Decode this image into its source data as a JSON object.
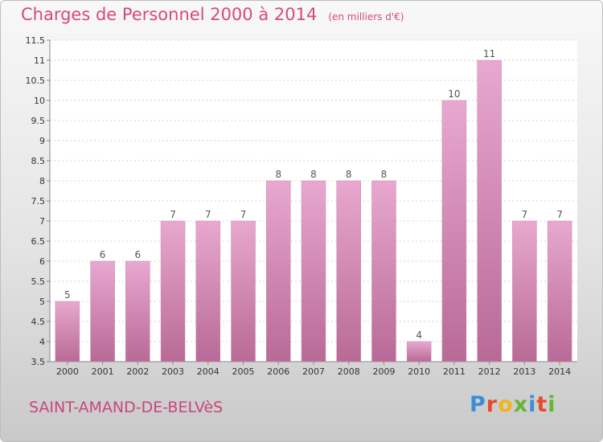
{
  "header": {
    "title": "Charges de Personnel 2000 à 2014",
    "unit": "(en milliers d'€)"
  },
  "footer": {
    "commune": "SAINT-AMAND-DE-BELVèS",
    "logo_letters": [
      "P",
      "r",
      "o",
      "x",
      "i",
      "t",
      "i"
    ],
    "logo_colors": [
      "#3a8fd8",
      "#e64a2e",
      "#f2b519",
      "#67b532",
      "#3a8fd8",
      "#e64a2e",
      "#67b532"
    ]
  },
  "colors": {
    "bar_top": "#e8a8d0",
    "bar_bottom": "#b86a96",
    "title": "#d64a78"
  },
  "chart_data": {
    "type": "bar",
    "title": "Charges de Personnel 2000 à 2014",
    "subtitle": "(en milliers d'€)",
    "categories": [
      "2000",
      "2001",
      "2002",
      "2003",
      "2004",
      "2005",
      "2006",
      "2007",
      "2008",
      "2009",
      "2010",
      "2011",
      "2012",
      "2013",
      "2014"
    ],
    "values": [
      5,
      6,
      6,
      7,
      7,
      7,
      8,
      8,
      8,
      8,
      4,
      10,
      11,
      7,
      7
    ],
    "data_labels": [
      "5",
      "6",
      "6",
      "7",
      "7",
      "7",
      "8",
      "8",
      "8",
      "8",
      "4",
      "10",
      "11",
      "7",
      "7"
    ],
    "ylim": [
      3.5,
      11.5
    ],
    "yticks": [
      "3.5",
      "4",
      "4.5",
      "5",
      "5.5",
      "6",
      "6.5",
      "7",
      "7.5",
      "8",
      "8.5",
      "9",
      "9.5",
      "10",
      "10.5",
      "11",
      "11.5"
    ],
    "grid": true
  }
}
